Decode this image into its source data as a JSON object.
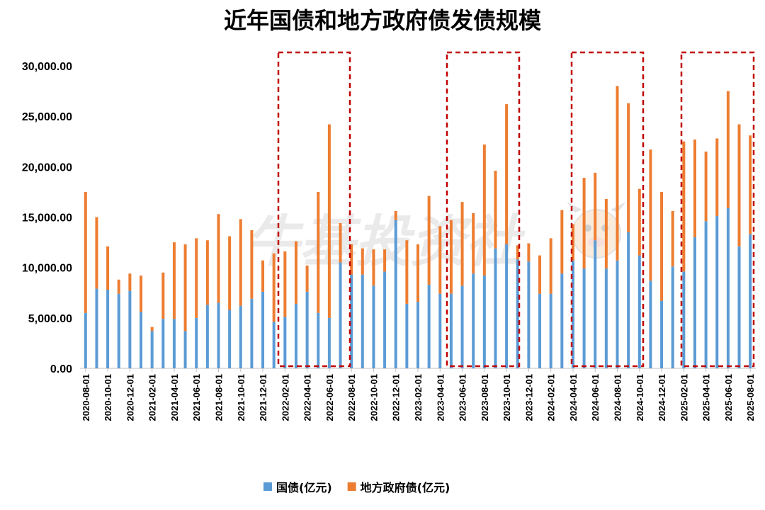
{
  "chart_data": {
    "type": "bar",
    "stacked": true,
    "title": "近年国债和地方政府债发债规模",
    "ylim": [
      0,
      30000
    ],
    "yticks": [
      "0.00",
      "5,000.00",
      "10,000.00",
      "15,000.00",
      "20,000.00",
      "25,000.00",
      "30,000.00"
    ],
    "ytick_values": [
      0,
      5000,
      10000,
      15000,
      20000,
      25000,
      30000
    ],
    "legend_position": "bottom",
    "grid": false,
    "categories": [
      "2020-08-01",
      "2020-09-01",
      "2020-10-01",
      "2020-11-01",
      "2020-12-01",
      "2021-01-01",
      "2021-02-01",
      "2021-03-01",
      "2021-04-01",
      "2021-05-01",
      "2021-06-01",
      "2021-07-01",
      "2021-08-01",
      "2021-09-01",
      "2021-10-01",
      "2021-11-01",
      "2021-12-01",
      "2022-01-01",
      "2022-02-01",
      "2022-03-01",
      "2022-04-01",
      "2022-05-01",
      "2022-06-01",
      "2022-07-01",
      "2022-08-01",
      "2022-09-01",
      "2022-10-01",
      "2022-11-01",
      "2022-12-01",
      "2023-01-01",
      "2023-02-01",
      "2023-03-01",
      "2023-04-01",
      "2023-05-01",
      "2023-06-01",
      "2023-07-01",
      "2023-08-01",
      "2023-09-01",
      "2023-10-01",
      "2023-11-01",
      "2023-12-01",
      "2024-01-01",
      "2024-02-01",
      "2024-03-01",
      "2024-04-01",
      "2024-05-01",
      "2024-06-01",
      "2024-07-01",
      "2024-08-01",
      "2024-09-01",
      "2024-10-01",
      "2024-11-01",
      "2024-12-01",
      "2025-01-01",
      "2025-02-01",
      "2025-03-01",
      "2025-04-01",
      "2025-05-01",
      "2025-06-01",
      "2025-07-01",
      "2025-08-01"
    ],
    "xtick_labels": [
      "2020-08-01",
      "2020-10-01",
      "2020-12-01",
      "2021-02-01",
      "2021-04-01",
      "2021-06-01",
      "2021-08-01",
      "2021-10-01",
      "2021-12-01",
      "2022-02-01",
      "2022-04-01",
      "2022-06-01",
      "2022-08-01",
      "2022-10-01",
      "2022-12-01",
      "2023-02-01",
      "2023-04-01",
      "2023-06-01",
      "2023-08-01",
      "2023-10-01",
      "2023-12-01",
      "2024-02-01",
      "2024-04-01",
      "2024-06-01",
      "2024-08-01",
      "2024-10-01",
      "2024-12-01",
      "2025-02-01",
      "2025-04-01",
      "2025-06-01",
      "2025-08-01"
    ],
    "series": [
      {
        "name": "国债(亿元)",
        "color": "#5b9bd5",
        "values": [
          5500,
          7900,
          7800,
          7400,
          7700,
          5600,
          3700,
          4900,
          4900,
          3700,
          5000,
          6300,
          6500,
          5800,
          6200,
          6900,
          7600,
          4600,
          5100,
          6400,
          7600,
          5500,
          5000,
          10500,
          9300,
          9300,
          8200,
          9600,
          14700,
          6400,
          6600,
          8300,
          7400,
          7400,
          8200,
          9400,
          9200,
          11900,
          12300,
          10800,
          10600,
          7400,
          7400,
          9400,
          10700,
          9900,
          12700,
          9900,
          10700,
          13500,
          11200,
          8700,
          6700,
          10100,
          9600,
          13000,
          14600,
          15100,
          15900,
          12100,
          13300
        ]
      },
      {
        "name": "地方政府债(亿元)",
        "color": "#ed7d31",
        "values": [
          12000,
          7100,
          4300,
          1400,
          1700,
          3600,
          400,
          4600,
          7600,
          8600,
          7900,
          6400,
          8800,
          7300,
          8600,
          6800,
          3100,
          6800,
          6500,
          6200,
          2600,
          12000,
          19200,
          3900,
          3000,
          2600,
          3600,
          2200,
          900,
          6300,
          5700,
          8800,
          6700,
          7300,
          8300,
          6000,
          13000,
          7700,
          13900,
          1400,
          1800,
          3800,
          5500,
          6300,
          3600,
          9000,
          6700,
          6900,
          17300,
          12800,
          6600,
          13000,
          10800,
          5500,
          12900,
          9700,
          6900,
          7700,
          11600,
          12100,
          9800
        ]
      }
    ]
  },
  "watermark_text": "牛基投资社"
}
